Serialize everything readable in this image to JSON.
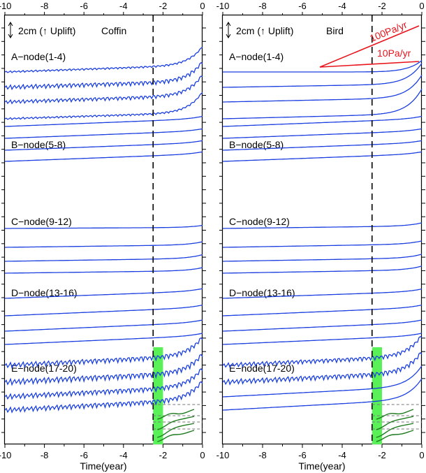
{
  "chart_data": [
    {
      "type": "line",
      "panel": "Coffin",
      "x_axis": {
        "label": "Time(year)",
        "range": [
          -10,
          0
        ],
        "ticks": [
          -10,
          -8,
          -6,
          -4,
          -2,
          0
        ],
        "tick_labels": [
          "-10",
          "-8",
          "-6",
          "-4",
          "-2",
          "0"
        ]
      },
      "y_axis": {
        "label": "",
        "scale": "2cm (↑ Uplift)"
      },
      "grid": false,
      "reference_time": -2.5,
      "highlight_window": [
        -2.5,
        -2.0
      ],
      "groups": [
        {
          "label": "A−node(1-4)",
          "series": [
            {
              "node": 1,
              "start": 0.0,
              "slope": 0.33,
              "end_jump": 0.9,
              "wiggle": 0.05
            },
            {
              "node": 2,
              "start": -0.48,
              "slope": 0.3,
              "end_jump": 0.95,
              "wiggle": 0.12
            },
            {
              "node": 3,
              "start": -0.82,
              "slope": 0.32,
              "end_jump": 1.0,
              "wiggle": 0.1
            },
            {
              "node": 4,
              "start": -1.24,
              "slope": 0.3,
              "end_jump": 1.0,
              "wiggle": 0.05
            }
          ]
        },
        {
          "label": "B−node(5-8)",
          "series": [
            {
              "node": 5,
              "start": 0.0,
              "slope": 0.37,
              "end_jump": 0.12,
              "wiggle": 0.0
            },
            {
              "node": 6,
              "start": -0.26,
              "slope": 0.36,
              "end_jump": 0.1,
              "wiggle": 0.0
            },
            {
              "node": 7,
              "start": -0.54,
              "slope": 0.36,
              "end_jump": 0.1,
              "wiggle": 0.0
            },
            {
              "node": 8,
              "start": -0.78,
              "slope": 0.36,
              "end_jump": 0.1,
              "wiggle": 0.0
            }
          ]
        },
        {
          "label": "C−node(9-12)",
          "series": [
            {
              "node": 9,
              "start": 0.0,
              "slope": 0.05,
              "end_jump": 0.1,
              "wiggle": 0.0
            },
            {
              "node": 10,
              "start": -0.46,
              "slope": 0.12,
              "end_jump": 0.15,
              "wiggle": 0.0
            },
            {
              "node": 11,
              "start": -0.72,
              "slope": 0.14,
              "end_jump": 0.18,
              "wiggle": 0.0
            },
            {
              "node": 12,
              "start": -0.94,
              "slope": 0.12,
              "end_jump": 0.15,
              "wiggle": 0.0
            }
          ]
        },
        {
          "label": "D−node(13-16)",
          "series": [
            {
              "node": 13,
              "start": 0.0,
              "slope": 0.35,
              "end_jump": 0.12,
              "wiggle": 0.0
            },
            {
              "node": 14,
              "start": -0.36,
              "slope": 0.4,
              "end_jump": 0.12,
              "wiggle": 0.0
            },
            {
              "node": 15,
              "start": -0.72,
              "slope": 0.42,
              "end_jump": 0.12,
              "wiggle": 0.0
            },
            {
              "node": 16,
              "start": -1.02,
              "slope": 0.42,
              "end_jump": 0.12,
              "wiggle": 0.0
            }
          ]
        },
        {
          "label": "E−node(17-20)",
          "series": [
            {
              "node": 17,
              "start": 0.0,
              "slope": 0.48,
              "end_jump": 0.9,
              "wiggle": 0.14
            },
            {
              "node": 18,
              "start": -0.4,
              "slope": 0.48,
              "end_jump": 0.9,
              "wiggle": 0.16
            },
            {
              "node": 19,
              "start": -0.8,
              "slope": 0.5,
              "end_jump": 0.9,
              "wiggle": 0.14
            },
            {
              "node": 20,
              "start": -1.12,
              "slope": 0.52,
              "end_jump": 0.9,
              "wiggle": 0.14
            }
          ]
        }
      ]
    },
    {
      "type": "line",
      "panel": "Bird",
      "x_axis": {
        "label": "Time(year)",
        "range": [
          -10,
          0
        ],
        "ticks": [
          -10,
          -8,
          -6,
          -4,
          -2,
          0
        ],
        "tick_labels": [
          "-10",
          "-8",
          "-6",
          "-4",
          "-2",
          "0"
        ]
      },
      "y_axis": {
        "label": "",
        "scale": "2cm (↑ Uplift)"
      },
      "grid": false,
      "reference_time": -2.5,
      "highlight_window": [
        -2.5,
        -2.0
      ],
      "stress_rate_labels": [
        "100Pa/yr",
        "10Pa/yr"
      ],
      "groups": [
        {
          "label": "A−node(1-4)",
          "series": [
            {
              "node": 1,
              "start": 0.0,
              "slope": 0.0,
              "end_jump": 0.55,
              "wiggle": 0.0
            },
            {
              "node": 2,
              "start": -0.4,
              "slope": 0.16,
              "end_jump": 1.0,
              "wiggle": 0.0
            },
            {
              "node": 3,
              "start": -0.66,
              "slope": 0.2,
              "end_jump": 1.1,
              "wiggle": 0.0
            },
            {
              "node": 4,
              "start": -0.92,
              "slope": 0.24,
              "end_jump": 1.2,
              "wiggle": 0.0
            }
          ]
        },
        {
          "label": "B−node(5-8)",
          "series": [
            {
              "node": 5,
              "start": 0.0,
              "slope": 0.37,
              "end_jump": 0.12,
              "wiggle": 0.0
            },
            {
              "node": 6,
              "start": -0.26,
              "slope": 0.36,
              "end_jump": 0.1,
              "wiggle": 0.0
            },
            {
              "node": 7,
              "start": -0.54,
              "slope": 0.36,
              "end_jump": 0.1,
              "wiggle": 0.0
            },
            {
              "node": 8,
              "start": -0.78,
              "slope": 0.36,
              "end_jump": 0.1,
              "wiggle": 0.0
            }
          ]
        },
        {
          "label": "C−node(9-12)",
          "series": [
            {
              "node": 9,
              "start": 0.0,
              "slope": 0.12,
              "end_jump": 0.15,
              "wiggle": 0.0
            },
            {
              "node": 10,
              "start": -0.44,
              "slope": 0.16,
              "end_jump": 0.15,
              "wiggle": 0.0
            },
            {
              "node": 11,
              "start": -0.7,
              "slope": 0.16,
              "end_jump": 0.18,
              "wiggle": 0.0
            },
            {
              "node": 12,
              "start": -0.92,
              "slope": 0.16,
              "end_jump": 0.18,
              "wiggle": 0.0
            }
          ]
        },
        {
          "label": "D−node(13-16)",
          "series": [
            {
              "node": 13,
              "start": 0.0,
              "slope": 0.33,
              "end_jump": 0.12,
              "wiggle": 0.0
            },
            {
              "node": 14,
              "start": -0.38,
              "slope": 0.4,
              "end_jump": 0.12,
              "wiggle": 0.0
            },
            {
              "node": 15,
              "start": -0.72,
              "slope": 0.42,
              "end_jump": 0.12,
              "wiggle": 0.0
            },
            {
              "node": 16,
              "start": -1.02,
              "slope": 0.42,
              "end_jump": 0.12,
              "wiggle": 0.0
            }
          ]
        },
        {
          "label": "E−node(17-20)",
          "series": [
            {
              "node": 17,
              "start": 0.0,
              "slope": 0.46,
              "end_jump": 1.0,
              "wiggle": 0.12
            },
            {
              "node": 18,
              "start": -0.4,
              "slope": 0.48,
              "end_jump": 1.0,
              "wiggle": 0.14
            },
            {
              "node": 19,
              "start": -0.8,
              "slope": 0.5,
              "end_jump": 1.0,
              "wiggle": 0.0
            },
            {
              "node": 20,
              "start": -1.12,
              "slope": 0.52,
              "end_jump": 1.0,
              "wiggle": 0.0
            }
          ]
        }
      ]
    }
  ],
  "colors": {
    "series_line": "#1a3fe0",
    "highlight": "#5af058",
    "inset_line": "#1d7a1d",
    "rate_line": "#e8141c",
    "reference_line": "#000000"
  }
}
